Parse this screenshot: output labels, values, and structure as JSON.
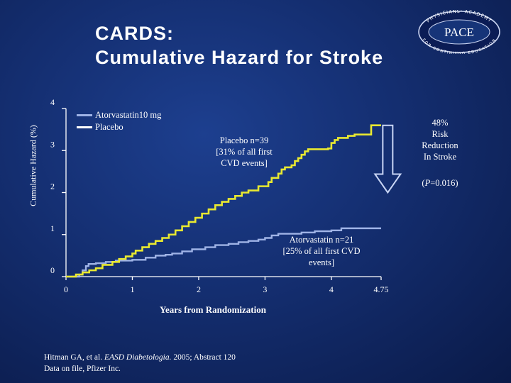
{
  "slide": {
    "title_line1": "CARDS:",
    "title_line2": "Cumulative Hazard for Stroke",
    "logo": {
      "text": "PACE",
      "ring_top": "PHYSICIANS' ACADEMY",
      "ring_bottom": "FOR CONTINUING EDUCATION"
    },
    "annotations": {
      "placebo": [
        "Placebo n=39",
        "[31% of all first",
        "CVD events]"
      ],
      "atorvastatin": [
        "Atorvastatin n=21",
        "[25% of all first  CVD",
        "events]"
      ],
      "reduction": [
        "48%",
        "Risk",
        "Reduction",
        "In Stroke"
      ],
      "p_open": "(",
      "p_symbol": "P",
      "p_rest": "=0.016)"
    },
    "citation": {
      "line1_a": "Hitman GA, et al. ",
      "line1_journal": "EASD Diabetologia.",
      "line1_b": " 2005; Abstract 120",
      "line2": "Data on file, Pfizer Inc."
    }
  },
  "colors": {
    "background": "#142e70",
    "atorvastatin": "#9fb3e6",
    "placebo": "#e9e930",
    "axis": "#ffffff",
    "text": "#ffffff"
  },
  "chart_data": {
    "type": "line",
    "title": "Cumulative Hazard for Stroke",
    "xlabel": "Years from Randomization",
    "ylabel": "Cumulative Hazard (%)",
    "xlim": [
      0,
      4.75
    ],
    "ylim": [
      0,
      4
    ],
    "x_ticks": [
      0,
      1,
      2,
      3,
      4,
      4.75
    ],
    "x_tick_labels": [
      "0",
      "1",
      "2",
      "3",
      "4",
      "4.75"
    ],
    "y_ticks": [
      0,
      1,
      2,
      3,
      4
    ],
    "y_tick_labels": [
      "0",
      "1",
      "2",
      "3",
      "4"
    ],
    "grid": false,
    "legend": "top-left",
    "step": true,
    "series": [
      {
        "name": "Atorvastatin10 mg",
        "color": "#9fb3e6",
        "points": [
          [
            0,
            0
          ],
          [
            0.2,
            0.05
          ],
          [
            0.25,
            0.15
          ],
          [
            0.3,
            0.25
          ],
          [
            0.34,
            0.3
          ],
          [
            0.45,
            0.32
          ],
          [
            0.6,
            0.35
          ],
          [
            0.75,
            0.38
          ],
          [
            1.0,
            0.4
          ],
          [
            1.2,
            0.45
          ],
          [
            1.35,
            0.5
          ],
          [
            1.5,
            0.52
          ],
          [
            1.6,
            0.55
          ],
          [
            1.75,
            0.6
          ],
          [
            1.9,
            0.65
          ],
          [
            2.1,
            0.7
          ],
          [
            2.25,
            0.75
          ],
          [
            2.45,
            0.78
          ],
          [
            2.6,
            0.82
          ],
          [
            2.75,
            0.85
          ],
          [
            2.9,
            0.88
          ],
          [
            3.0,
            0.92
          ],
          [
            3.1,
            0.98
          ],
          [
            3.2,
            1.02
          ],
          [
            3.55,
            1.05
          ],
          [
            3.75,
            1.08
          ],
          [
            4.0,
            1.1
          ],
          [
            4.15,
            1.15
          ],
          [
            4.75,
            1.15
          ]
        ]
      },
      {
        "name": "Placebo",
        "color": "#e9e930",
        "points": [
          [
            0,
            0
          ],
          [
            0.15,
            0.05
          ],
          [
            0.25,
            0.1
          ],
          [
            0.35,
            0.15
          ],
          [
            0.45,
            0.2
          ],
          [
            0.55,
            0.28
          ],
          [
            0.7,
            0.35
          ],
          [
            0.8,
            0.42
          ],
          [
            0.9,
            0.48
          ],
          [
            1.0,
            0.55
          ],
          [
            1.05,
            0.62
          ],
          [
            1.15,
            0.7
          ],
          [
            1.25,
            0.78
          ],
          [
            1.35,
            0.85
          ],
          [
            1.45,
            0.92
          ],
          [
            1.55,
            1.0
          ],
          [
            1.65,
            1.1
          ],
          [
            1.75,
            1.2
          ],
          [
            1.85,
            1.3
          ],
          [
            1.95,
            1.4
          ],
          [
            2.05,
            1.5
          ],
          [
            2.15,
            1.6
          ],
          [
            2.25,
            1.7
          ],
          [
            2.35,
            1.78
          ],
          [
            2.45,
            1.85
          ],
          [
            2.55,
            1.92
          ],
          [
            2.65,
            2.0
          ],
          [
            2.75,
            2.05
          ],
          [
            2.9,
            2.15
          ],
          [
            3.05,
            2.25
          ],
          [
            3.1,
            2.35
          ],
          [
            3.2,
            2.45
          ],
          [
            3.25,
            2.55
          ],
          [
            3.3,
            2.6
          ],
          [
            3.4,
            2.65
          ],
          [
            3.45,
            2.75
          ],
          [
            3.5,
            2.82
          ],
          [
            3.55,
            2.9
          ],
          [
            3.6,
            2.98
          ],
          [
            3.65,
            3.03
          ],
          [
            3.95,
            3.05
          ],
          [
            4.0,
            3.18
          ],
          [
            4.05,
            3.25
          ],
          [
            4.1,
            3.3
          ],
          [
            4.25,
            3.35
          ],
          [
            4.35,
            3.38
          ],
          [
            4.6,
            3.4
          ],
          [
            4.6,
            3.6
          ],
          [
            4.75,
            3.6
          ]
        ]
      }
    ],
    "arrow": {
      "x": 4.85,
      "from_y": 3.6,
      "to_y": 2.0
    }
  }
}
